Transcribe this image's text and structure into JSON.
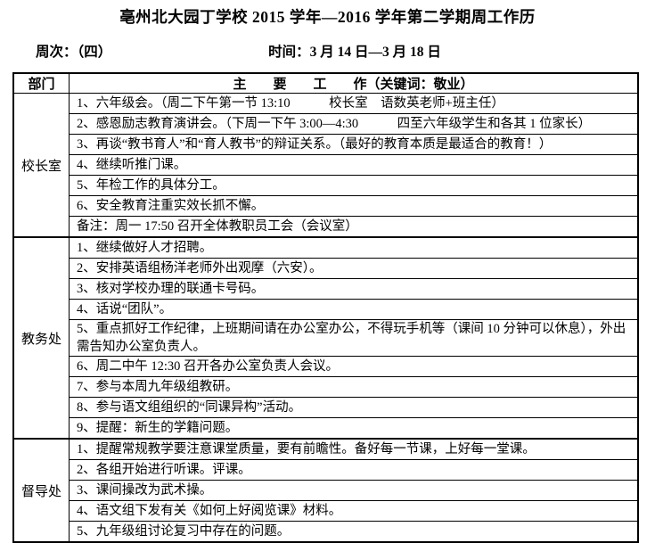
{
  "page": {
    "title": "亳州北大园丁学校 2015 学年—2016 学年第二学期周工作历",
    "week_label": "周次：（四）",
    "time_label": "时间：3 月 14 日—3 月 18 日"
  },
  "table": {
    "header": {
      "dept": "部门",
      "main": "主　　要　　工　　作（关键词：敬业）"
    },
    "sections": [
      {
        "dept": "校长室",
        "items": [
          "1、六年级会。（周二下午第一节 13:10　　　校长室　语数英老师+班主任）",
          "2、感恩励志教育演讲会。（下周一下午 3:00—4:30　　　四至六年级学生和各其 1 位家长）",
          "3、再谈“教书育人”和“育人教书”的辩证关系。（最好的教育本质是最适合的教育！）",
          "4、继续听推门课。",
          "5、年检工作的具体分工。",
          "6、安全教育注重实效长抓不懈。",
          "备注：周一 17:50 召开全体教职员工会（会议室）"
        ]
      },
      {
        "dept": "教务处",
        "items": [
          "1、继续做好人才招聘。",
          "2、安排英语组杨洋老师外出观摩（六安）。",
          "3、核对学校办理的联通卡号码。",
          "4、话说“团队”。",
          "5、重点抓好工作纪律，上班期间请在办公室办公，不得玩手机等（课间 10 分钟可以休息），外出需告知办公室负责人。",
          "6、周二中午 12:30 召开各办公室负责人会议。",
          "7、参与本周九年级组教研。",
          "8、参与语文组组织的“同课异构”活动。",
          "9、提醒：新生的学籍问题。"
        ]
      },
      {
        "dept": "督导处",
        "items": [
          "1、提醒常规教学要注意课堂质量，要有前瞻性。备好每一节课，上好每一堂课。",
          "2、各组开始进行听课。评课。",
          "3、课间操改为武术操。",
          "4、语文组下发有关《如何上好阅览课》材料。",
          "5、九年级组讨论复习中存在的问题。"
        ]
      }
    ]
  }
}
